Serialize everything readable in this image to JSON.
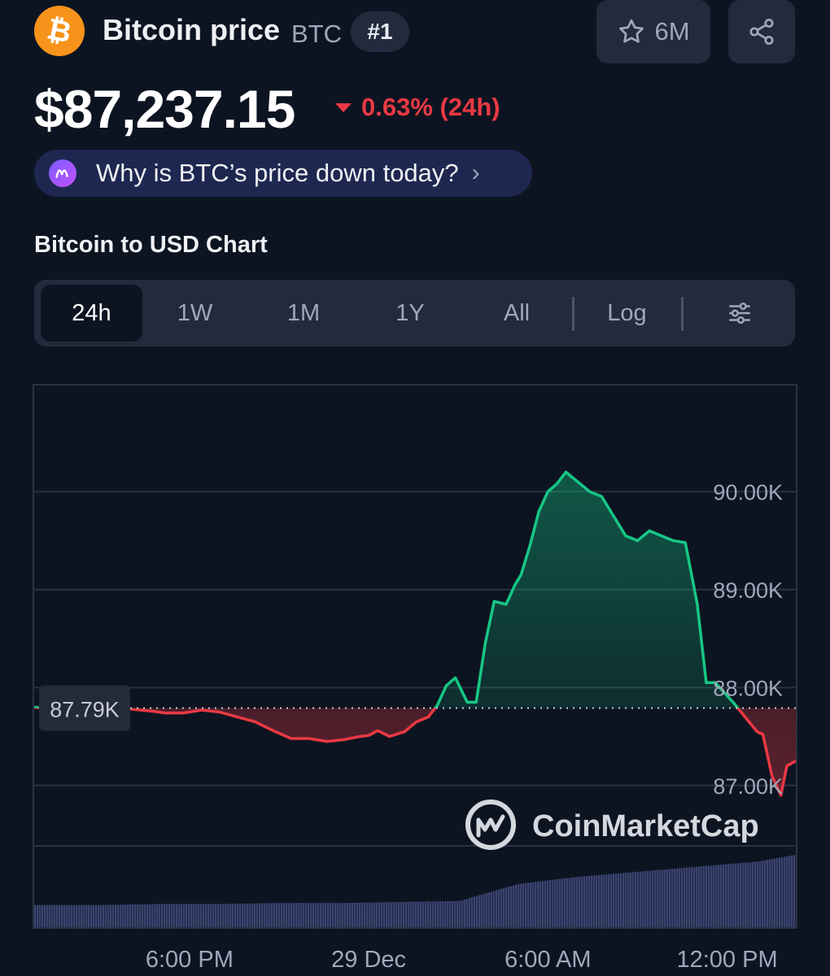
{
  "header": {
    "title": "Bitcoin price",
    "symbol": "BTC",
    "rank": "#1",
    "logo_glyph": "₿",
    "watchlist_count": "6M",
    "icons": [
      "bitcoin-logo-icon",
      "star-icon",
      "share-icon"
    ]
  },
  "price": {
    "value": "$87,237.15",
    "change": "0.63% (24h)",
    "direction": "down",
    "down_color": "#ea3943",
    "up_color": "#16c784"
  },
  "insight": {
    "text": "Why is BTC’s price down today?",
    "icon": "ai-sparkle-icon"
  },
  "chart_section": {
    "title": "Bitcoin to USD Chart",
    "tabs": [
      {
        "label": "24h",
        "active": true
      },
      {
        "label": "1W",
        "active": false
      },
      {
        "label": "1M",
        "active": false
      },
      {
        "label": "1Y",
        "active": false
      },
      {
        "label": "All",
        "active": false
      },
      {
        "label": "Log",
        "active": false
      }
    ],
    "settings_icon": "sliders-icon"
  },
  "chart_data": {
    "type": "area",
    "title": "",
    "reference_label": "87.79K",
    "reference_value": 87790,
    "watermark": "CoinMarketCap",
    "y_ticks": [
      {
        "value": 90000,
        "label": "90.00K"
      },
      {
        "value": 89000,
        "label": "89.00K"
      },
      {
        "value": 88000,
        "label": "88.00K"
      },
      {
        "value": 87000,
        "label": "87.00K"
      }
    ],
    "ylim": [
      86450,
      91100
    ],
    "x_ticks": [
      {
        "t": 3,
        "label": "6:00 PM"
      },
      {
        "t": 9,
        "label": "29 Dec"
      },
      {
        "t": 15,
        "label": "6:00 AM"
      },
      {
        "t": 21,
        "label": "12:00 PM"
      }
    ],
    "xlim": [
      -2.2,
      23.3
    ],
    "grid": true,
    "series": [
      {
        "x": [
          -2.2,
          -1.5,
          -0.8,
          -0.3,
          0.3,
          1.0,
          1.7,
          2.2,
          2.8,
          3.4,
          4.0,
          4.6,
          5.2,
          5.8,
          6.4,
          7.0,
          7.6,
          8.2,
          8.7,
          9.0,
          9.3,
          9.7,
          10.2,
          10.6,
          11.0,
          11.3,
          11.6,
          11.9,
          12.3,
          12.6,
          12.9,
          13.2,
          13.6,
          13.9,
          14.1,
          14.4,
          14.7,
          15.0,
          15.3,
          15.6,
          16.0,
          16.4,
          16.8,
          17.2,
          17.6,
          18.0,
          18.4,
          18.8,
          19.2,
          19.6,
          20.0,
          20.3,
          20.6,
          20.9,
          21.2,
          21.6,
          22.0,
          22.2,
          22.5,
          22.8,
          23.0,
          23.3
        ],
        "y": [
          87800,
          87770,
          87780,
          87790,
          87820,
          87780,
          87760,
          87740,
          87740,
          87770,
          87750,
          87700,
          87650,
          87560,
          87480,
          87480,
          87450,
          87470,
          87500,
          87510,
          87560,
          87500,
          87550,
          87650,
          87700,
          87820,
          88020,
          88100,
          87850,
          87850,
          88450,
          88880,
          88850,
          89050,
          89150,
          89450,
          89800,
          90000,
          90080,
          90200,
          90100,
          90000,
          89950,
          89750,
          89550,
          89500,
          89600,
          89550,
          89500,
          89480,
          88850,
          88050,
          88050,
          87950,
          87850,
          87700,
          87550,
          87520,
          87100,
          86900,
          87200,
          87250
        ]
      }
    ],
    "volume": {
      "x": [
        -2.2,
        0,
        2,
        4,
        6,
        8,
        10,
        12,
        14,
        16,
        18,
        20,
        22,
        23.3
      ],
      "values": [
        22,
        22,
        23,
        23,
        24,
        24,
        25,
        26,
        43,
        50,
        55,
        60,
        65,
        72
      ]
    }
  }
}
